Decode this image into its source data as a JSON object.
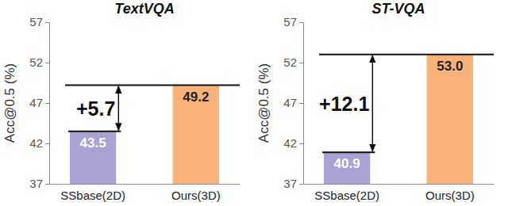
{
  "chart_data": [
    {
      "type": "bar",
      "title": "TextVQA",
      "y_label": "Acc@0.5 (%)",
      "categories": [
        "SSbase(2D)",
        "Ours(3D)"
      ],
      "values": [
        43.5,
        49.2
      ],
      "colors": [
        "#aaa2d4",
        "#f9b27a"
      ],
      "ylim": [
        37,
        57
      ],
      "yticks": [
        37,
        42,
        47,
        52,
        57
      ],
      "data_labels": true,
      "annotations": [
        "+5.7"
      ]
    },
    {
      "type": "bar",
      "title": "ST-VQA",
      "y_label": "Acc@0.5 (%)",
      "categories": [
        "SSbase(2D)",
        "Ours(3D)"
      ],
      "values": [
        40.9,
        53
      ],
      "value_labels": [
        "40.9",
        "53.0"
      ],
      "colors": [
        "#aaa2d4",
        "#f9b27a"
      ],
      "ylim": [
        37,
        57
      ],
      "yticks": [
        37,
        42,
        47,
        52,
        57
      ],
      "data_labels": true,
      "annotations": [
        "+12.1"
      ]
    }
  ]
}
